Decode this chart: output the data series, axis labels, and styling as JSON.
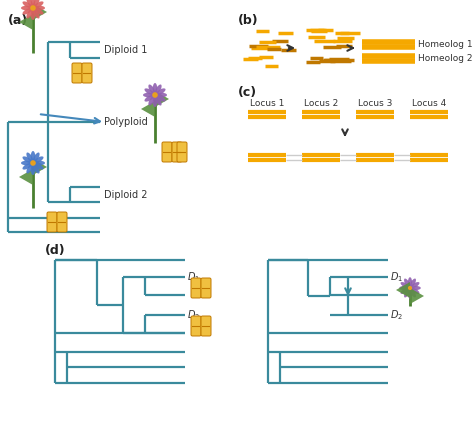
{
  "tree_color": "#3a8a9c",
  "tree_lw": 1.6,
  "orange_color": "#F5A800",
  "orange_dark": "#C07800",
  "orange_light": "#F0C040",
  "bg_color": "#ffffff",
  "locus_labels": [
    "Locus 1",
    "Locus 2",
    "Locus 3",
    "Locus 4"
  ],
  "homeolog1_label": "Homeolog 1",
  "homeolog2_label": "Homeolog 2",
  "diploid1_label": "Diploid 1",
  "diploid2_label": "Diploid 2",
  "polyploid_label": "Polyploid",
  "panel_a_label": "(a)",
  "panel_b_label": "(b)",
  "panel_c_label": "(c)",
  "panel_d_label": "(d)",
  "flower_red": "#d96060",
  "flower_purple": "#9060b0",
  "flower_blue": "#4878c8",
  "flower_center": "#E8A020",
  "stem_color": "#4a8030",
  "leaf_color": "#5a9040",
  "arrow_color": "#4488bb",
  "black_arrow": "#333333"
}
